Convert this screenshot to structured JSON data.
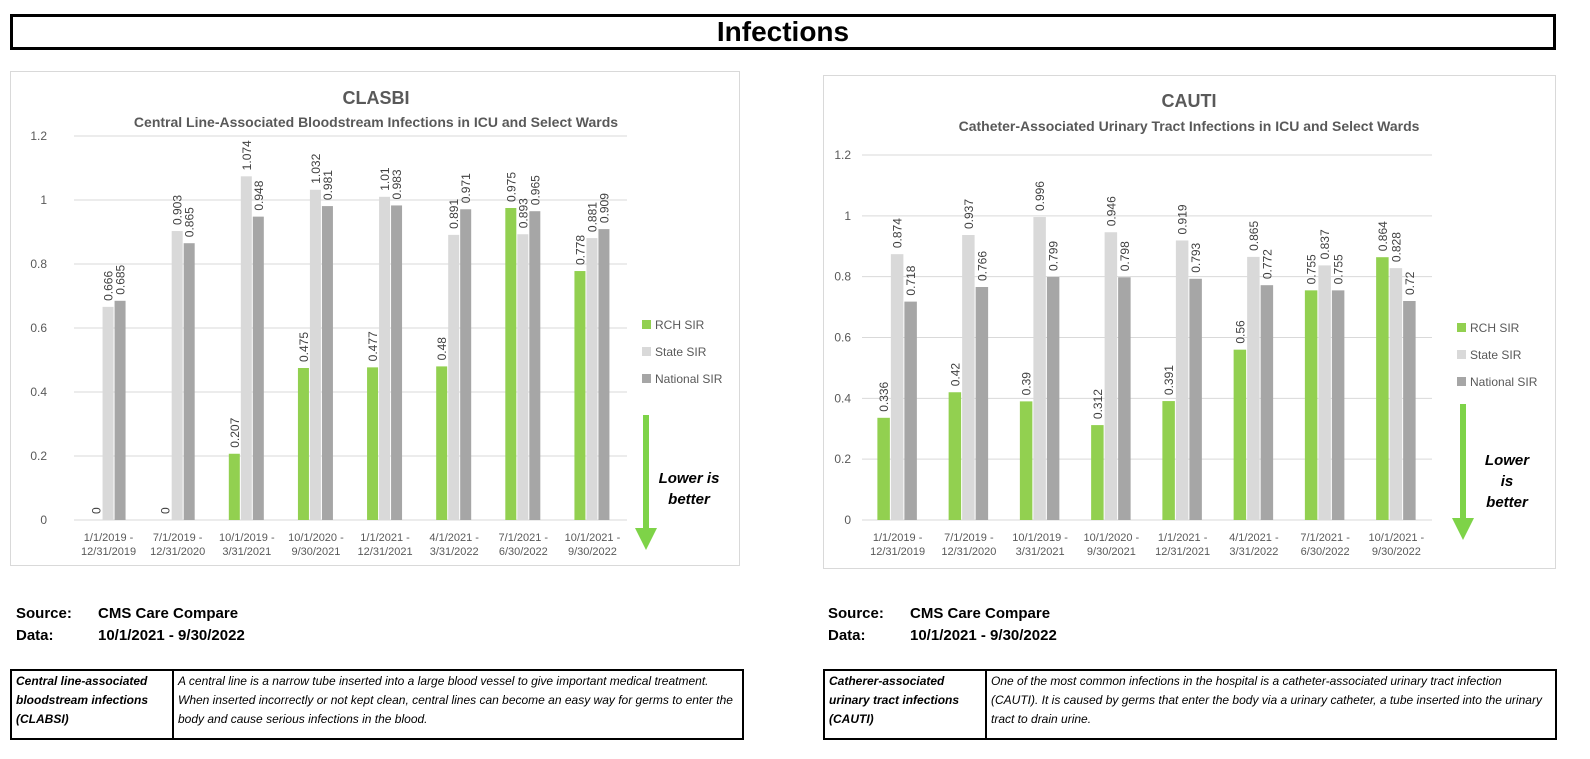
{
  "page": {
    "title": "Infections"
  },
  "legend_note": "Lower is better",
  "source_left": {
    "source_label": "Source:",
    "source_value": "CMS Care Compare",
    "data_label": "Data:",
    "data_value": "10/1/2021 - 9/30/2022"
  },
  "source_right": {
    "source_label": "Source:",
    "source_value": "CMS Care Compare",
    "data_label": "Data:",
    "data_value": "10/1/2021 - 9/30/2022"
  },
  "desc_left": {
    "term": "Central line-associated bloodstream infections (CLABSI)",
    "text": "A central line is a narrow tube inserted into a large blood vessel to give important medical treatment. When inserted incorrectly or not kept clean, central lines can become an easy way for germs to enter the body and cause serious infections in the blood."
  },
  "desc_right": {
    "term": "Catherer-associated urinary tract infections (CAUTI)",
    "text": "One of the most common infections in the hospital is a catheter-associated urinary tract infection (CAUTI). It is caused by germs that enter the body via a urinary catheter, a tube inserted into the urinary tract to drain urine."
  },
  "colors": {
    "rch": "#92d050",
    "state": "#d9d9d9",
    "national": "#a6a6a6",
    "arrow": "#7ed348"
  },
  "chart_data": [
    {
      "type": "bar",
      "title": "CLASBI",
      "subtitle": "Central Line-Associated Bloodstream Infections in ICU and Select Wards",
      "xlabel": "",
      "ylabel": "",
      "ylim": [
        0,
        1.2
      ],
      "yticks": [
        "0",
        "0.2",
        "0.4",
        "0.6",
        "0.8",
        "1",
        "1.2"
      ],
      "grid": true,
      "legend_position": "right",
      "categories": [
        "1/1/2019 - 12/31/2019",
        "7/1/2019 - 12/31/2020",
        "10/1/2019 - 3/31/2021",
        "10/1/2020 - 9/30/2021",
        "1/1/2021 - 12/31/2021",
        "4/1/2021 - 3/31/2022",
        "7/1/2021 - 6/30/2022",
        "10/1/2021 - 9/30/2022"
      ],
      "series": [
        {
          "name": "RCH SIR",
          "values": [
            0,
            0,
            0.207,
            0.475,
            0.477,
            0.48,
            0.975,
            0.778
          ],
          "labels": [
            "0",
            "0",
            "0.207",
            "0.475",
            "0.477",
            "0.48",
            "0.975",
            "0.778"
          ]
        },
        {
          "name": "State SIR",
          "values": [
            0.666,
            0.903,
            1.074,
            1.032,
            1.01,
            0.891,
            0.893,
            0.881
          ],
          "labels": [
            "0.666",
            "0.903",
            "1.074",
            "1.032",
            "1.01",
            "0.891",
            "0.893",
            "0.881"
          ]
        },
        {
          "name": "National SIR",
          "values": [
            0.685,
            0.865,
            0.948,
            0.981,
            0.983,
            0.971,
            0.965,
            0.909
          ],
          "labels": [
            "0.685",
            "0.865",
            "0.948",
            "0.981",
            "0.983",
            "0.971",
            "0.965",
            "0.909"
          ]
        }
      ]
    },
    {
      "type": "bar",
      "title": "CAUTI",
      "subtitle": "Catheter-Associated Urinary Tract Infections in ICU and Select Wards",
      "xlabel": "",
      "ylabel": "",
      "ylim": [
        0,
        1.2
      ],
      "yticks": [
        "0",
        "0.2",
        "0.4",
        "0.6",
        "0.8",
        "1",
        "1.2"
      ],
      "grid": true,
      "legend_position": "right",
      "categories": [
        "1/1/2019 - 12/31/2019",
        "7/1/2019 - 12/31/2020",
        "10/1/2019 - 3/31/2021",
        "10/1/2020 - 9/30/2021",
        "1/1/2021 - 12/31/2021",
        "4/1/2021 - 3/31/2022",
        "7/1/2021 - 6/30/2022",
        "10/1/2021 - 9/30/2022"
      ],
      "series": [
        {
          "name": "RCH SIR",
          "values": [
            0.336,
            0.42,
            0.39,
            0.312,
            0.391,
            0.56,
            0.755,
            0.864
          ],
          "labels": [
            "0.336",
            "0.42",
            "0.39",
            "0.312",
            "0.391",
            "0.56",
            "0.755",
            "0.864"
          ]
        },
        {
          "name": "State SIR",
          "values": [
            0.874,
            0.937,
            0.996,
            0.946,
            0.919,
            0.865,
            0.837,
            0.828
          ],
          "labels": [
            "0.874",
            "0.937",
            "0.996",
            "0.946",
            "0.919",
            "0.865",
            "0.837",
            "0.828"
          ]
        },
        {
          "name": "National SIR",
          "values": [
            0.718,
            0.766,
            0.799,
            0.798,
            0.793,
            0.772,
            0.755,
            0.72
          ],
          "labels": [
            "0.718",
            "0.766",
            "0.799",
            "0.798",
            "0.793",
            "0.772",
            "0.755",
            "0.72"
          ]
        }
      ]
    }
  ]
}
